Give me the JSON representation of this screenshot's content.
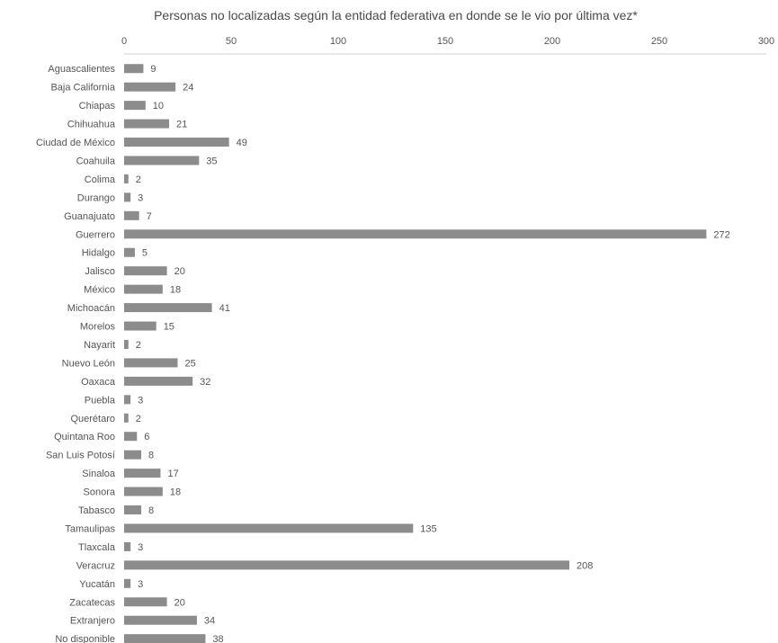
{
  "chart_data": {
    "type": "bar",
    "orientation": "horizontal",
    "title": "Personas no localizadas según la entidad federativa en donde se le vio por última vez*",
    "xlabel": "",
    "ylabel": "",
    "xlim": [
      0,
      300
    ],
    "ticks": [
      0,
      50,
      100,
      150,
      200,
      250,
      300
    ],
    "tick_position": "top",
    "grid": false,
    "bar_color": "#8c8c8c",
    "categories": [
      "Aguascalientes",
      "Baja California",
      "Chiapas",
      "Chihuahua",
      "Ciudad de México",
      "Coahuila",
      "Colima",
      "Durango",
      "Guanajuato",
      "Guerrero",
      "Hidalgo",
      "Jalisco",
      "México",
      "Michoacán",
      "Morelos",
      "Nayarit",
      "Nuevo León",
      "Oaxaca",
      "Puebla",
      "Querétaro",
      "Quintana Roo",
      "San Luis Potosí",
      "Sinaloa",
      "Sonora",
      "Tabasco",
      "Tamaulipas",
      "Tlaxcala",
      "Veracruz",
      "Yucatán",
      "Zacatecas",
      "Extranjero",
      "No disponible"
    ],
    "values": [
      9,
      24,
      10,
      21,
      49,
      35,
      2,
      3,
      7,
      272,
      5,
      20,
      18,
      41,
      15,
      2,
      25,
      32,
      3,
      2,
      6,
      8,
      17,
      18,
      8,
      135,
      3,
      208,
      3,
      20,
      34,
      38
    ]
  }
}
